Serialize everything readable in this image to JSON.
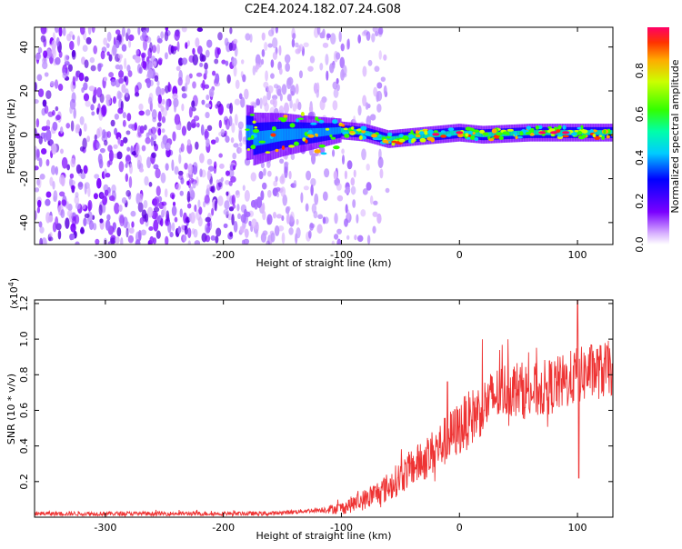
{
  "title": "C2E4.2024.182.07.24.G08",
  "chart_data": [
    {
      "type": "heatmap",
      "title": "",
      "xlabel": "Height of straight line (km)",
      "ylabel": "Frequency (Hz)",
      "xlim": [
        -360,
        130
      ],
      "ylim": [
        -50,
        49
      ],
      "xticks": [
        -300,
        -200,
        -100,
        0,
        100
      ],
      "xtick_labels": [
        "-300",
        "-200",
        "-100",
        "0",
        "100"
      ],
      "yticks": [
        -40,
        -20,
        0,
        20,
        40
      ],
      "ytick_labels": [
        "-40",
        "-20",
        "0",
        "20",
        "40"
      ],
      "colorbar": {
        "label": "Normalized spectral amplitude",
        "range": [
          0.0,
          1.0
        ],
        "ticks": [
          0.0,
          0.2,
          0.4,
          0.6,
          0.8
        ],
        "tick_labels": [
          "0.0",
          "0.2",
          "0.4",
          "0.6",
          "0.8"
        ],
        "colormap": "rainbow (purple to red)"
      },
      "features": {
        "broadband_noise_x_range": [
          -360,
          -100
        ],
        "signal_band_x_range": [
          -180,
          130
        ],
        "signal_frequency_track": [
          [
            -175,
            -2
          ],
          [
            -150,
            0
          ],
          [
            -120,
            1
          ],
          [
            -100,
            2
          ],
          [
            -80,
            1
          ],
          [
            -60,
            -2
          ],
          [
            -40,
            -1
          ],
          [
            -20,
            0
          ],
          [
            0,
            1
          ],
          [
            20,
            0
          ],
          [
            60,
            1
          ],
          [
            100,
            1
          ],
          [
            130,
            1
          ]
        ]
      },
      "grid": false,
      "legend": "colorbar-right"
    },
    {
      "type": "line",
      "title": "",
      "xlabel": "Height of straight line (km)",
      "ylabel": "SNR (10 * v/v)",
      "y_multiplier_label": "(x10",
      "y_multiplier_exp": "4",
      "y_multiplier_close": ")",
      "xlim": [
        -360,
        130
      ],
      "ylim": [
        0,
        1.22
      ],
      "xticks": [
        -300,
        -200,
        -100,
        0,
        100
      ],
      "xtick_labels": [
        "-300",
        "-200",
        "-100",
        "0",
        "100"
      ],
      "yticks": [
        0.2,
        0.4,
        0.6,
        0.8,
        1.0,
        1.2
      ],
      "ytick_labels": [
        "0.2",
        "0.4",
        "0.6",
        "0.8",
        "1.0",
        "1.2"
      ],
      "color": "#ee3333",
      "series": [
        {
          "x": [
            -360,
            -300,
            -250,
            -200,
            -160,
            -140,
            -120,
            -100,
            -80,
            -60,
            -40,
            -30,
            -20,
            -10,
            0,
            10,
            20,
            30,
            40,
            50,
            60,
            70,
            80,
            90,
            95,
            100,
            105,
            110,
            120,
            130
          ],
          "y": [
            0.02,
            0.02,
            0.02,
            0.02,
            0.02,
            0.03,
            0.04,
            0.05,
            0.1,
            0.17,
            0.28,
            0.32,
            0.38,
            0.44,
            0.5,
            0.56,
            0.62,
            0.68,
            0.72,
            0.72,
            0.7,
            0.72,
            0.74,
            0.76,
            0.78,
            0.8,
            0.8,
            0.82,
            0.82,
            0.84
          ]
        }
      ],
      "spikes": [
        {
          "x": -10,
          "y": 0.76
        },
        {
          "x": 100,
          "y": 1.22
        },
        {
          "x": 101,
          "y": 0.22
        }
      ],
      "grid": false,
      "legend": "none"
    }
  ]
}
